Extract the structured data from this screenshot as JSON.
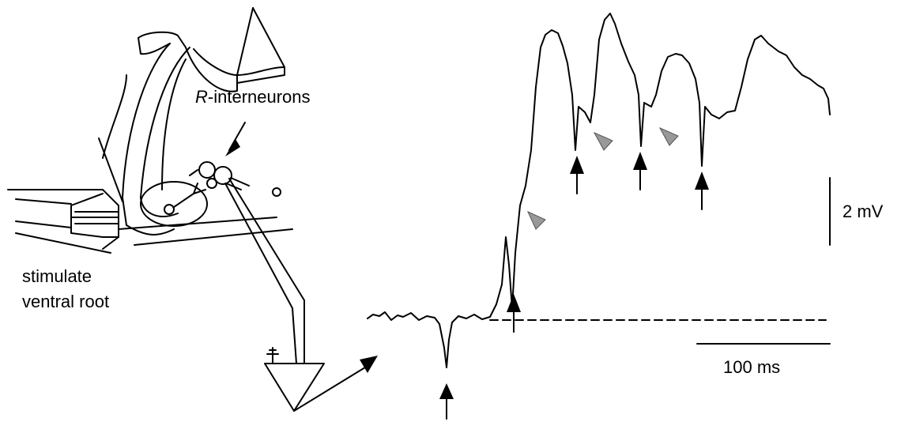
{
  "labels": {
    "interneurons": {
      "italic": "R",
      "rest": "-interneurons"
    },
    "stimulate": [
      "stimulate",
      "ventral root"
    ],
    "voltage_scale": "2 mV",
    "time_scale": "100 ms"
  }
}
